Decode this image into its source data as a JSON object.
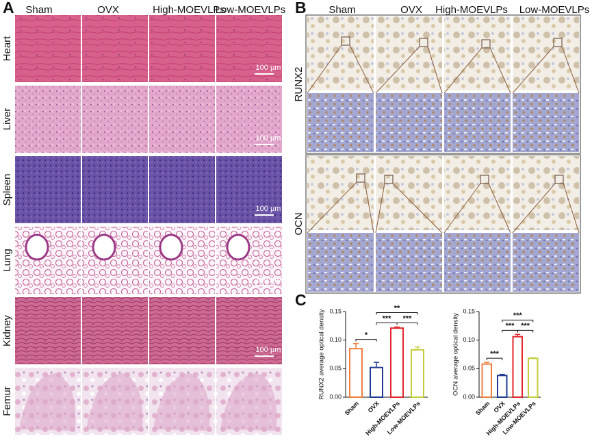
{
  "panels": {
    "A": {
      "label": "A",
      "columns": [
        "Sham",
        "OVX",
        "High-MOEVLPs",
        "Low-MOEVLPs"
      ],
      "rows": [
        "Heart",
        "Liver",
        "Spleen",
        "Lung",
        "Kidney",
        "Femur"
      ],
      "scale_bar": "100 µm"
    },
    "B": {
      "label": "B",
      "columns": [
        "Sham",
        "OVX",
        "High-MOEVLPs",
        "Low-MOEVLPs"
      ],
      "rows": [
        "RUNX2",
        "OCN"
      ]
    },
    "C": {
      "label": "C"
    }
  },
  "chart_data": [
    {
      "type": "bar",
      "ylabel": "RUNX2 average optical  density",
      "categories": [
        "Sham",
        "OVX",
        "High-MOEVLPs",
        "Low-MOEVLPs"
      ],
      "values": [
        0.085,
        0.052,
        0.121,
        0.083
      ],
      "errors": [
        0.009,
        0.009,
        0.002,
        0.005
      ],
      "colors": [
        "#f07f3c",
        "#1f3a93",
        "#e0262c",
        "#c5cc3a"
      ],
      "ylim": [
        0,
        0.15
      ],
      "yticks": [
        {
          "value": 0,
          "label": "0.00"
        },
        0.05,
        {
          "value": 0.1,
          "label": "0.10"
        },
        0.15
      ],
      "significance": [
        {
          "label": "*",
          "pair": [
            0,
            1
          ]
        },
        {
          "label": "***",
          "pair": [
            1,
            2
          ]
        },
        {
          "label": "***",
          "pair": [
            2,
            3
          ]
        },
        {
          "label": "**",
          "pair": [
            1,
            3
          ]
        }
      ]
    },
    {
      "type": "bar",
      "ylabel": "OCN average optical  density",
      "categories": [
        "Sham",
        "OVX",
        "High-MOEVLPs",
        "Low-MOEVLPs"
      ],
      "values": [
        0.058,
        0.038,
        0.106,
        0.068
      ],
      "errors": [
        0.003,
        0.002,
        0.004,
        0.001
      ],
      "colors": [
        "#f07f3c",
        "#1f3a93",
        "#e0262c",
        "#c5cc3a"
      ],
      "ylim": [
        0,
        0.15
      ],
      "yticks": [
        {
          "value": 0,
          "label": "0.00"
        },
        0.05,
        {
          "value": 0.1,
          "label": "0.10"
        },
        0.15
      ],
      "significance": [
        {
          "label": "***",
          "pair": [
            0,
            1
          ]
        },
        {
          "label": "***",
          "pair": [
            1,
            2
          ]
        },
        {
          "label": "***",
          "pair": [
            2,
            3
          ]
        },
        {
          "label": "***",
          "pair": [
            1,
            3
          ]
        }
      ]
    }
  ]
}
